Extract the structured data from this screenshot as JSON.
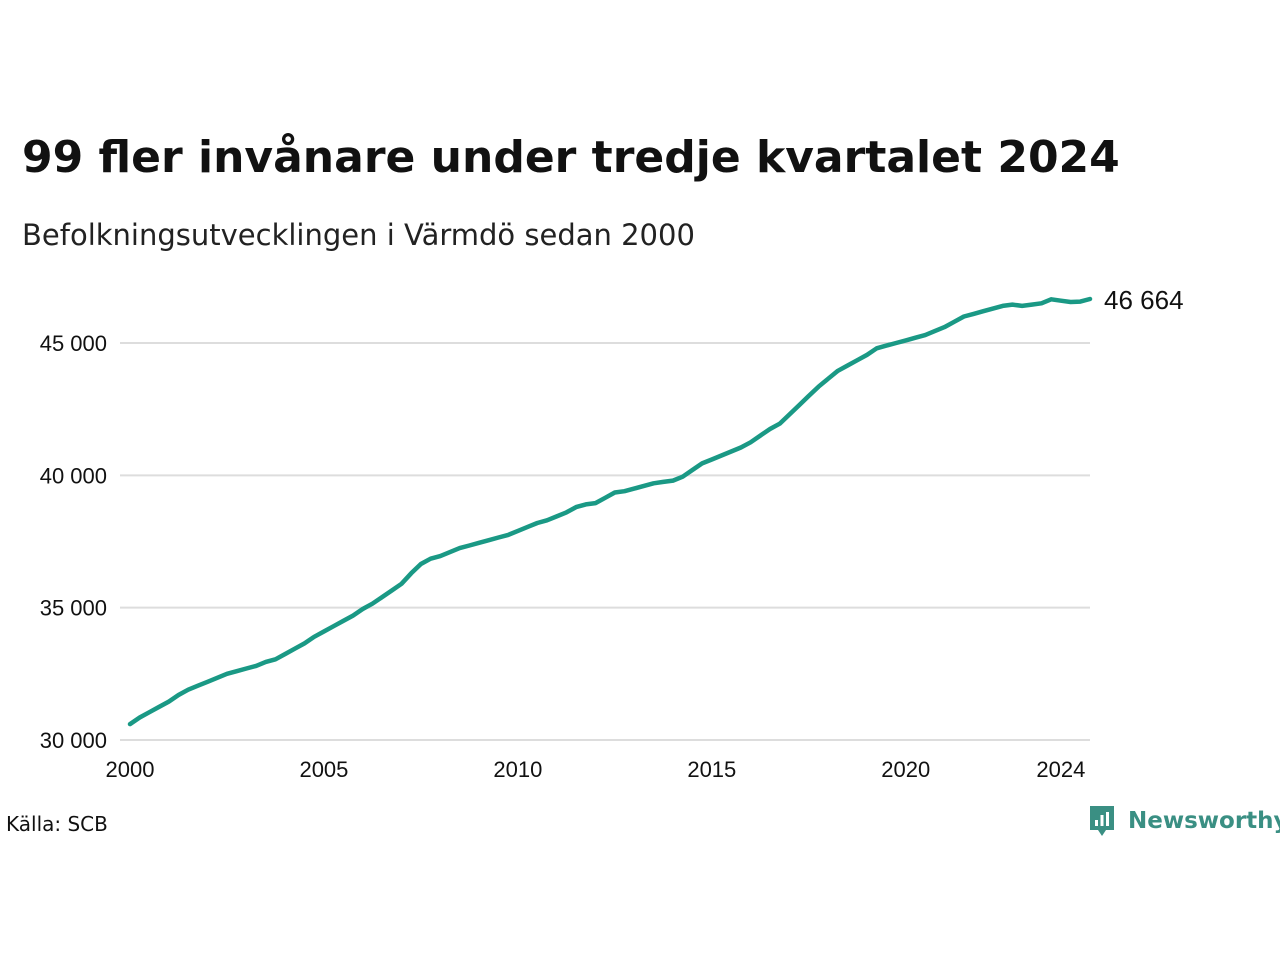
{
  "header": {
    "title": "99 fler invånare under tredje kvartalet 2024",
    "subtitle": "Befolkningsutvecklingen i Värmdö sedan 2000"
  },
  "footer": {
    "source": "Källa: SCB",
    "brand": "Newsworthy"
  },
  "colors": {
    "line": "#1a9985",
    "grid": "#dddddd",
    "brand": "#3a8f83"
  },
  "icons": {
    "logo": "newsworthy-logo-icon"
  },
  "chart_data": {
    "type": "line",
    "title": "99 fler invånare under tredje kvartalet 2024",
    "subtitle": "Befolkningsutvecklingen i Värmdö sedan 2000",
    "xlabel": "",
    "ylabel": "",
    "xlim": [
      2000,
      2024.75
    ],
    "ylim": [
      30000,
      46800
    ],
    "x_ticks": [
      2000,
      2005,
      2010,
      2015,
      2020,
      2024
    ],
    "x_tick_labels": [
      "2000",
      "2005",
      "2010",
      "2015",
      "2020",
      "2024"
    ],
    "y_ticks": [
      30000,
      35000,
      40000,
      45000
    ],
    "y_tick_labels": [
      "30 000",
      "35 000",
      "40 000",
      "45 000"
    ],
    "grid": "horizontal",
    "end_label": "46 664",
    "series": [
      {
        "x": [
          2000.0,
          2000.25,
          2000.5,
          2000.75,
          2001.0,
          2001.25,
          2001.5,
          2001.75,
          2002.0,
          2002.25,
          2002.5,
          2002.75,
          2003.0,
          2003.25,
          2003.5,
          2003.75,
          2004.0,
          2004.25,
          2004.5,
          2004.75,
          2005.0,
          2005.25,
          2005.5,
          2005.75,
          2006.0,
          2006.25,
          2006.5,
          2006.75,
          2007.0,
          2007.25,
          2007.5,
          2007.75,
          2008.0,
          2008.25,
          2008.5,
          2008.75,
          2009.0,
          2009.25,
          2009.5,
          2009.75,
          2010.0,
          2010.25,
          2010.5,
          2010.75,
          2011.0,
          2011.25,
          2011.5,
          2011.75,
          2012.0,
          2012.25,
          2012.5,
          2012.75,
          2013.0,
          2013.25,
          2013.5,
          2013.75,
          2014.0,
          2014.25,
          2014.5,
          2014.75,
          2015.0,
          2015.25,
          2015.5,
          2015.75,
          2016.0,
          2016.25,
          2016.5,
          2016.75,
          2017.0,
          2017.25,
          2017.5,
          2017.75,
          2018.0,
          2018.25,
          2018.5,
          2018.75,
          2019.0,
          2019.25,
          2019.5,
          2019.75,
          2020.0,
          2020.25,
          2020.5,
          2020.75,
          2021.0,
          2021.25,
          2021.5,
          2021.75,
          2022.0,
          2022.25,
          2022.5,
          2022.75,
          2023.0,
          2023.25,
          2023.5,
          2023.75,
          2024.0,
          2024.25,
          2024.5,
          2024.75
        ],
        "values": [
          30600,
          30850,
          31050,
          31250,
          31450,
          31700,
          31900,
          32050,
          32200,
          32350,
          32500,
          32600,
          32700,
          32800,
          32950,
          33050,
          33250,
          33450,
          33650,
          33900,
          34100,
          34300,
          34500,
          34700,
          34950,
          35150,
          35400,
          35650,
          35900,
          36300,
          36650,
          36850,
          36950,
          37100,
          37250,
          37350,
          37450,
          37550,
          37650,
          37750,
          37900,
          38050,
          38200,
          38300,
          38450,
          38600,
          38800,
          38900,
          38950,
          39150,
          39350,
          39400,
          39500,
          39600,
          39700,
          39750,
          39800,
          39950,
          40200,
          40450,
          40600,
          40750,
          40900,
          41050,
          41250,
          41500,
          41750,
          41950,
          42300,
          42650,
          43000,
          43350,
          43650,
          43950,
          44150,
          44350,
          44550,
          44800,
          44900,
          45000,
          45100,
          45200,
          45300,
          45450,
          45600,
          45800,
          46000,
          46100,
          46200,
          46300,
          46400,
          46450,
          46400,
          46450,
          46500,
          46650,
          46600,
          46550,
          46565,
          46664
        ]
      }
    ]
  }
}
